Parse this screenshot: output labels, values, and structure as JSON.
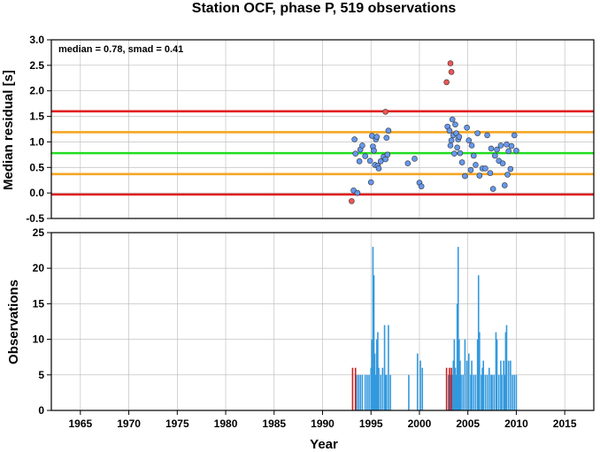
{
  "chart_data": [
    {
      "type": "scatter",
      "title": "Station OCF, phase P, 519 observations",
      "xlabel": "",
      "ylabel": "Median residual [s]",
      "annotation": "median = 0.78, smad = 0.41",
      "xlim": [
        1962,
        2018
      ],
      "ylim": [
        -0.5,
        3.0
      ],
      "yticks": [
        "-0.5",
        "0.0",
        "0.5",
        "1.0",
        "1.5",
        "2.0",
        "2.5",
        "3.0"
      ],
      "grid": true,
      "reference_lines": [
        {
          "y": 1.6,
          "color": "#e02020"
        },
        {
          "y": 1.19,
          "color": "#f5a623"
        },
        {
          "y": 0.78,
          "color": "#22dd22"
        },
        {
          "y": 0.37,
          "color": "#f5a623"
        },
        {
          "y": -0.03,
          "color": "#e02020"
        }
      ],
      "series": [
        {
          "color": "#6699ee",
          "points": [
            [
              1993.2,
              0.05
            ],
            [
              1993.3,
              1.05
            ],
            [
              1993.4,
              0.77
            ],
            [
              1993.6,
              0.0
            ],
            [
              1993.8,
              0.62
            ],
            [
              1993.9,
              0.85
            ],
            [
              1994.1,
              0.93
            ],
            [
              1994.4,
              0.72
            ],
            [
              1994.9,
              0.63
            ],
            [
              1995.0,
              0.21
            ],
            [
              1995.1,
              1.12
            ],
            [
              1995.2,
              0.91
            ],
            [
              1995.3,
              0.83
            ],
            [
              1995.4,
              0.55
            ],
            [
              1995.5,
              1.05
            ],
            [
              1995.6,
              1.1
            ],
            [
              1995.7,
              0.53
            ],
            [
              1995.8,
              0.48
            ],
            [
              1996.0,
              0.62
            ],
            [
              1996.3,
              0.71
            ],
            [
              1996.5,
              0.66
            ],
            [
              1996.6,
              1.08
            ],
            [
              1996.7,
              0.75
            ],
            [
              1996.8,
              1.22
            ],
            [
              1998.8,
              0.58
            ],
            [
              1999.5,
              0.67
            ],
            [
              2000.0,
              0.2
            ],
            [
              2000.2,
              0.13
            ],
            [
              2002.9,
              1.3
            ],
            [
              2003.1,
              1.22
            ],
            [
              2003.2,
              0.93
            ],
            [
              2003.3,
              1.03
            ],
            [
              2003.4,
              1.44
            ],
            [
              2003.5,
              1.13
            ],
            [
              2003.6,
              0.77
            ],
            [
              2003.7,
              1.34
            ],
            [
              2003.8,
              1.17
            ],
            [
              2003.9,
              0.89
            ],
            [
              2004.0,
              1.05
            ],
            [
              2004.1,
              1.1
            ],
            [
              2004.2,
              0.78
            ],
            [
              2004.4,
              0.6
            ],
            [
              2004.7,
              0.33
            ],
            [
              2004.9,
              1.28
            ],
            [
              2005.1,
              1.03
            ],
            [
              2005.3,
              0.45
            ],
            [
              2005.4,
              0.93
            ],
            [
              2005.6,
              0.73
            ],
            [
              2005.8,
              0.55
            ],
            [
              2006.0,
              1.17
            ],
            [
              2006.2,
              0.34
            ],
            [
              2006.5,
              0.48
            ],
            [
              2006.8,
              0.48
            ],
            [
              2007.0,
              1.13
            ],
            [
              2007.3,
              0.39
            ],
            [
              2007.4,
              0.87
            ],
            [
              2007.6,
              0.08
            ],
            [
              2007.8,
              0.73
            ],
            [
              2008.0,
              0.85
            ],
            [
              2008.2,
              0.63
            ],
            [
              2008.4,
              0.93
            ],
            [
              2008.6,
              0.58
            ],
            [
              2008.8,
              0.15
            ],
            [
              2009.0,
              0.95
            ],
            [
              2009.1,
              0.36
            ],
            [
              2009.2,
              0.82
            ],
            [
              2009.4,
              0.47
            ],
            [
              2009.5,
              0.92
            ],
            [
              2009.8,
              1.13
            ],
            [
              2010.0,
              0.83
            ]
          ]
        },
        {
          "color": "#ee5555",
          "points": [
            [
              1993.0,
              -0.16
            ],
            [
              1996.5,
              1.59
            ],
            [
              2002.8,
              2.17
            ],
            [
              2003.2,
              2.54
            ],
            [
              2003.3,
              2.37
            ]
          ]
        }
      ]
    },
    {
      "type": "bar",
      "title": "",
      "xlabel": "Year",
      "ylabel": "Observations",
      "xlim": [
        1962,
        2018
      ],
      "ylim": [
        0,
        25
      ],
      "xticks": [
        "1965",
        "1970",
        "1975",
        "1980",
        "1985",
        "1990",
        "1995",
        "2000",
        "2005",
        "2010",
        "2015"
      ],
      "yticks": [
        "0",
        "5",
        "10",
        "15",
        "20",
        "25"
      ],
      "grid": true,
      "series": [
        {
          "color": "#3399dd",
          "bars": [
            [
              1993.5,
              5
            ],
            [
              1993.7,
              5
            ],
            [
              1993.9,
              5
            ],
            [
              1994.1,
              5
            ],
            [
              1994.4,
              5
            ],
            [
              1994.6,
              5
            ],
            [
              1994.8,
              5
            ],
            [
              1995.0,
              6
            ],
            [
              1995.1,
              10
            ],
            [
              1995.2,
              23
            ],
            [
              1995.3,
              19
            ],
            [
              1995.4,
              8
            ],
            [
              1995.5,
              5
            ],
            [
              1995.6,
              10
            ],
            [
              1995.7,
              11
            ],
            [
              1995.8,
              6
            ],
            [
              1996.0,
              5
            ],
            [
              1996.2,
              6
            ],
            [
              1996.4,
              12
            ],
            [
              1996.5,
              5
            ],
            [
              1996.6,
              5
            ],
            [
              1996.8,
              12
            ],
            [
              1997.0,
              5
            ],
            [
              1998.9,
              5
            ],
            [
              1999.8,
              8
            ],
            [
              2000.1,
              7
            ],
            [
              2000.3,
              6
            ],
            [
              2003.0,
              5
            ],
            [
              2003.2,
              5
            ],
            [
              2003.4,
              5
            ],
            [
              2003.5,
              7
            ],
            [
              2003.6,
              10
            ],
            [
              2003.7,
              6
            ],
            [
              2003.8,
              5
            ],
            [
              2003.9,
              15
            ],
            [
              2004.0,
              23
            ],
            [
              2004.1,
              10
            ],
            [
              2004.2,
              7
            ],
            [
              2004.3,
              5
            ],
            [
              2004.5,
              5
            ],
            [
              2004.7,
              10
            ],
            [
              2004.9,
              7
            ],
            [
              2005.1,
              8
            ],
            [
              2005.3,
              5
            ],
            [
              2005.4,
              7
            ],
            [
              2005.6,
              5
            ],
            [
              2005.8,
              5
            ],
            [
              2006.0,
              10
            ],
            [
              2006.1,
              19
            ],
            [
              2006.2,
              11
            ],
            [
              2006.4,
              5
            ],
            [
              2006.5,
              6
            ],
            [
              2006.6,
              7
            ],
            [
              2006.8,
              5
            ],
            [
              2007.0,
              5
            ],
            [
              2007.2,
              6
            ],
            [
              2007.4,
              5
            ],
            [
              2007.5,
              5
            ],
            [
              2007.7,
              5
            ],
            [
              2007.9,
              11
            ],
            [
              2008.0,
              10
            ],
            [
              2008.2,
              5
            ],
            [
              2008.4,
              7
            ],
            [
              2008.5,
              5
            ],
            [
              2008.7,
              7
            ],
            [
              2008.8,
              5
            ],
            [
              2008.9,
              11
            ],
            [
              2009.0,
              12
            ],
            [
              2009.2,
              7
            ],
            [
              2009.4,
              7
            ],
            [
              2009.6,
              5
            ],
            [
              2009.8,
              5
            ],
            [
              2010.0,
              5
            ]
          ]
        },
        {
          "color": "#cc2222",
          "bars": [
            [
              1993.1,
              6
            ],
            [
              1993.4,
              6
            ],
            [
              2002.8,
              6
            ],
            [
              2003.1,
              6
            ],
            [
              2003.3,
              6
            ]
          ]
        }
      ]
    }
  ]
}
